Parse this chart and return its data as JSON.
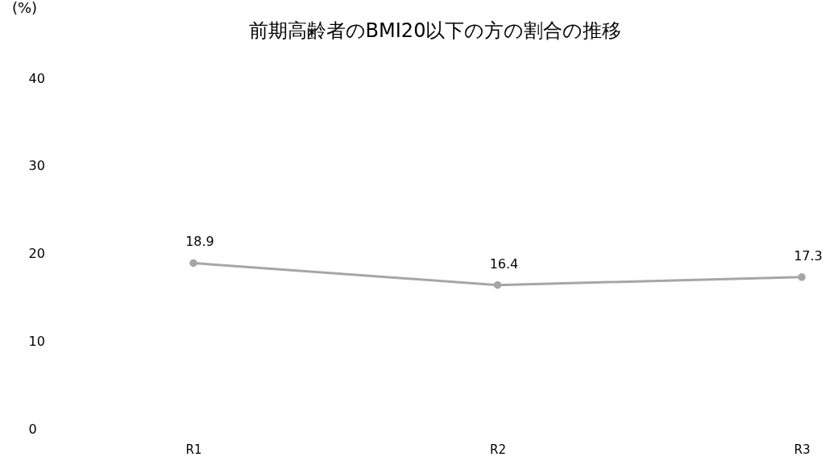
{
  "chart_data": {
    "type": "line",
    "title": "前期高齢者のBMI20以下の方の割合の推移",
    "ylabel": "(%)",
    "categories": [
      "R1",
      "R2",
      "R3"
    ],
    "series": [
      {
        "color": "#a6a6a6",
        "values": [
          18.9,
          16.4,
          17.3
        ]
      }
    ],
    "ylim": [
      0,
      40
    ],
    "yticks": [
      0,
      10,
      20,
      30,
      40
    ],
    "grid": false,
    "legend": false,
    "marker": "circle",
    "data_labels": true
  }
}
